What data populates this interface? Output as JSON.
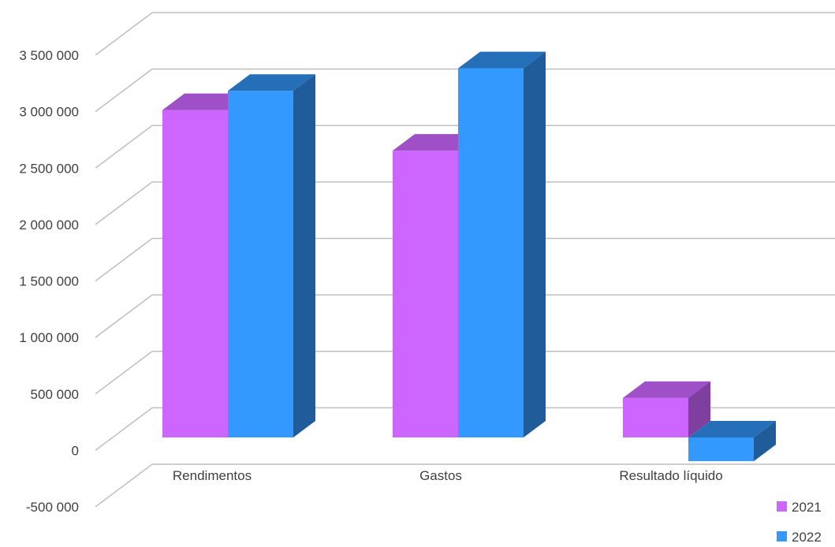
{
  "chart_data": {
    "type": "bar",
    "style": "3d-clustered-column",
    "title": "",
    "xlabel": "",
    "ylabel": "",
    "categories": [
      "Rendimentos",
      "Gastos",
      "Resultado líquido"
    ],
    "series": [
      {
        "name": "2021",
        "values": [
          2900000,
          2540000,
          350000
        ],
        "color": "#cc66ff"
      },
      {
        "name": "2022",
        "values": [
          3070000,
          3270000,
          -210000
        ],
        "color": "#3399ff"
      }
    ],
    "ylim": [
      -500000,
      3500000
    ],
    "yticks": [
      {
        "value": 3500000,
        "label": "3 500 000"
      },
      {
        "value": 3000000,
        "label": "3 000 000"
      },
      {
        "value": 2500000,
        "label": "2 500 000"
      },
      {
        "value": 2000000,
        "label": "2 000 000"
      },
      {
        "value": 1500000,
        "label": "1 500 000"
      },
      {
        "value": 1000000,
        "label": "1 000 000"
      },
      {
        "value": 500000,
        "label": "500 000"
      },
      {
        "value": 0,
        "label": "0"
      },
      {
        "value": -500000,
        "label": "-500 000"
      }
    ],
    "grid": true,
    "legend": "bottom-right"
  }
}
